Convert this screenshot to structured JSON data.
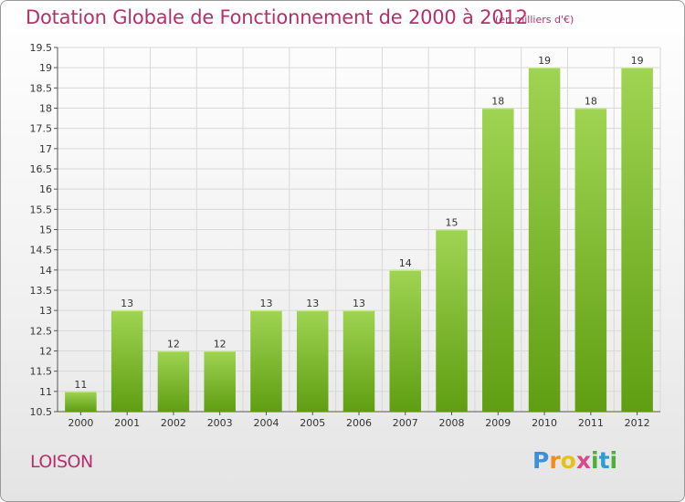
{
  "header": {
    "title": "Dotation Globale de Fonctionnement de 2000 à 2012",
    "subtitle": "(en milliers d'€)"
  },
  "footer": {
    "commune": "LOISON",
    "logo_letters": [
      "P",
      "r",
      "o",
      "x",
      "i",
      "t",
      "i"
    ]
  },
  "colors": {
    "title": "#b5306b",
    "bar_top": "#9fd452",
    "bar_bottom": "#5f9e12"
  },
  "chart_data": {
    "type": "bar",
    "title": "Dotation Globale de Fonctionnement de 2000 à 2012",
    "subtitle": "(en milliers d'€)",
    "xlabel": "",
    "ylabel": "",
    "categories": [
      "2000",
      "2001",
      "2002",
      "2003",
      "2004",
      "2005",
      "2006",
      "2007",
      "2008",
      "2009",
      "2010",
      "2011",
      "2012"
    ],
    "values": [
      11,
      13,
      12,
      12,
      13,
      13,
      13,
      14,
      15,
      18,
      19,
      18,
      19
    ],
    "data_labels": [
      "11",
      "13",
      "12",
      "12",
      "13",
      "13",
      "13",
      "14",
      "15",
      "18",
      "19",
      "18",
      "19"
    ],
    "ylim": [
      10.5,
      19.5
    ],
    "yticks": [
      10.5,
      11,
      11.5,
      12,
      12.5,
      13,
      13.5,
      14,
      14.5,
      15,
      15.5,
      16,
      16.5,
      17,
      17.5,
      18,
      18.5,
      19,
      19.5
    ],
    "ytick_labels": [
      "10.5",
      "11",
      "11.5",
      "12",
      "12.5",
      "13",
      "13.5",
      "14",
      "14.5",
      "15",
      "15.5",
      "16",
      "16.5",
      "17",
      "17.5",
      "18",
      "18.5",
      "19",
      "19.5"
    ],
    "grid": true,
    "legend": "none"
  }
}
